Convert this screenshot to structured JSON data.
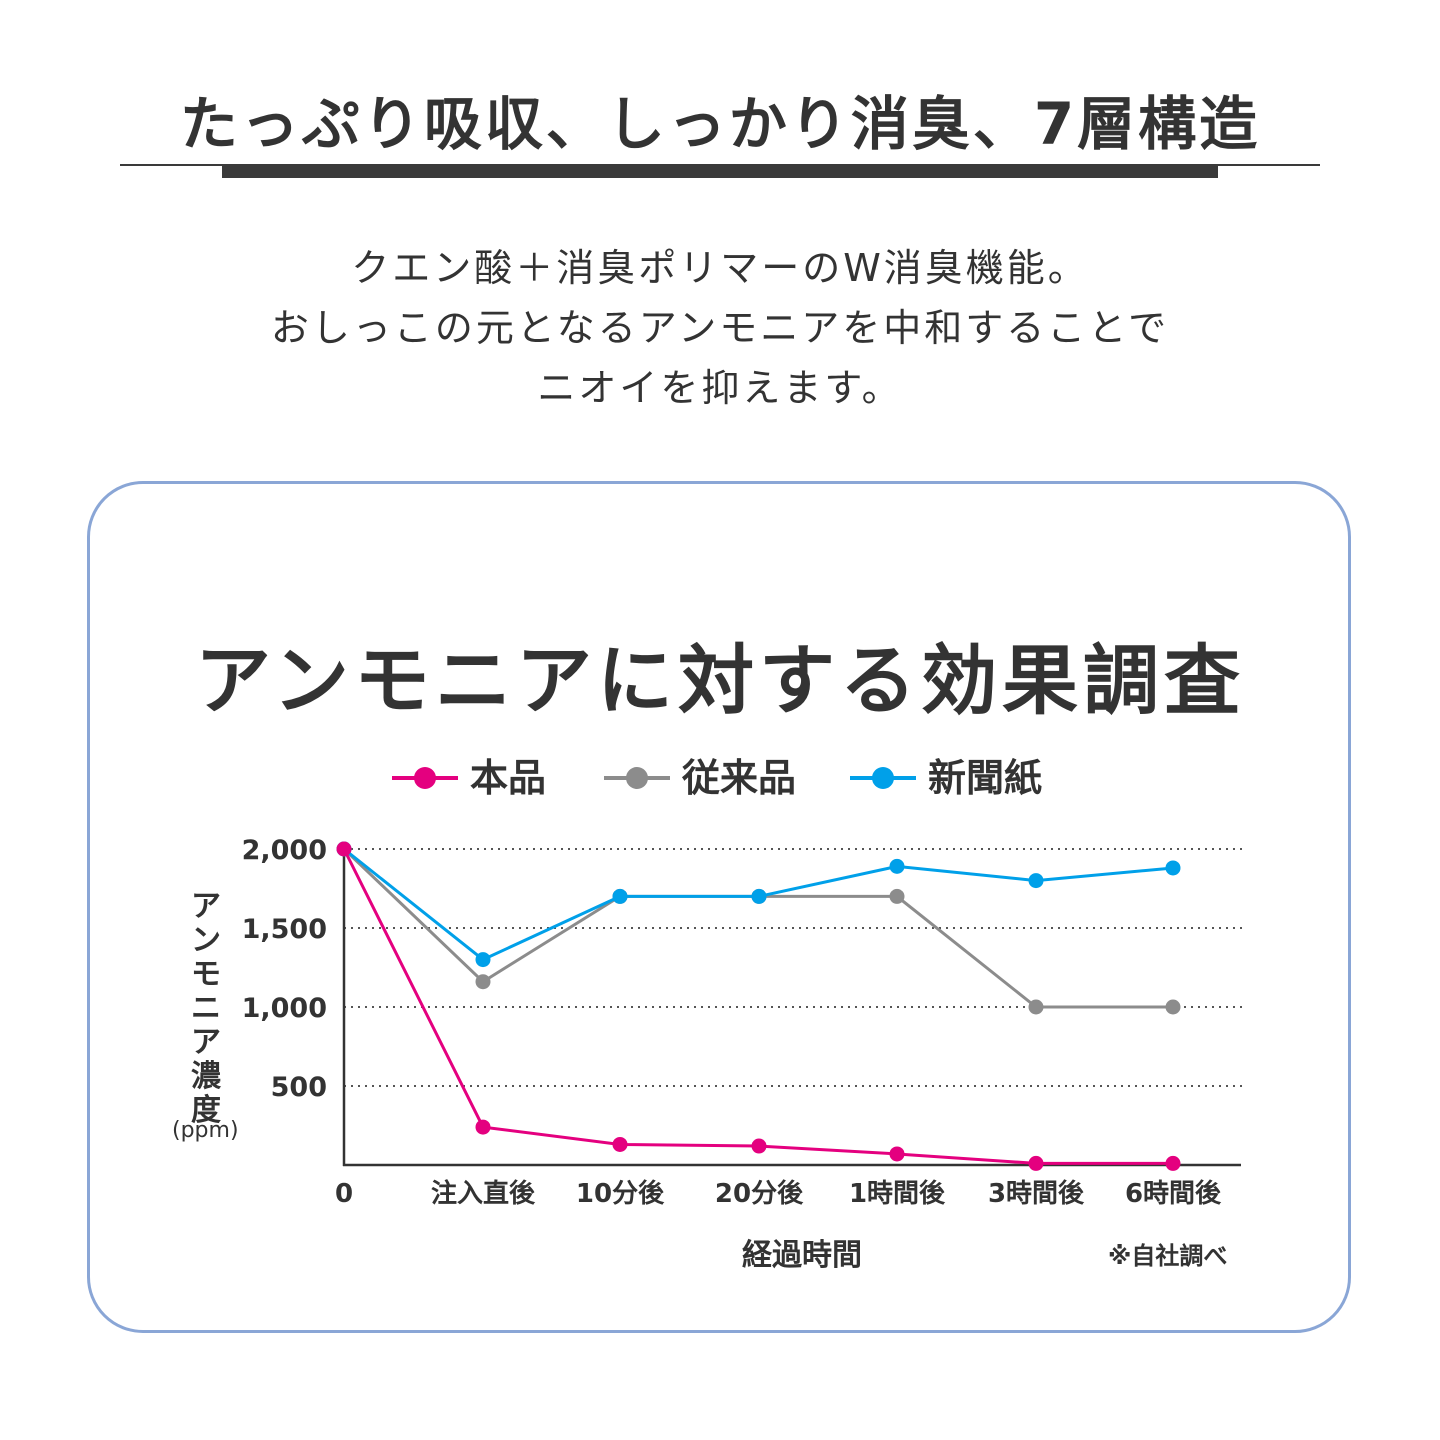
{
  "header": {
    "title": "たっぷり吸収、しっかり消臭、7層構造",
    "description": [
      "クエン酸＋消臭ポリマーのW消臭機能。",
      "おしっこの元となるアンモニアを中和することで",
      "ニオイを抑えます。"
    ]
  },
  "chart_data": {
    "type": "line",
    "title": "アンモニアに対する効果調査",
    "xlabel": "経過時間",
    "ylabel": "アンモニア濃度",
    "yunit": "(ppm)",
    "categories": [
      "0",
      "注入直後",
      "10分後",
      "20分後",
      "1時間後",
      "3時間後",
      "6時間後"
    ],
    "yticks": [
      "500",
      "1,000",
      "1,500",
      "2,000"
    ],
    "ytick_values": [
      500,
      1000,
      1500,
      2000
    ],
    "ylim": [
      0,
      2000
    ],
    "grid": "horizontal-dotted",
    "legend_position": "top",
    "series": [
      {
        "name": "本品",
        "color": "#e4007f",
        "values": [
          2000,
          240,
          130,
          120,
          70,
          10,
          10
        ]
      },
      {
        "name": "従来品",
        "color": "#8c8c8c",
        "values": [
          2000,
          1160,
          1700,
          1700,
          1700,
          1000,
          1000
        ]
      },
      {
        "name": "新聞紙",
        "color": "#00a0e9",
        "values": [
          2000,
          1300,
          1700,
          1700,
          1890,
          1800,
          1880
        ]
      }
    ],
    "note": "※自社調べ"
  },
  "colors": {
    "panel_border": "#8aa6d6",
    "text": "#333333",
    "axis": "#333333"
  }
}
